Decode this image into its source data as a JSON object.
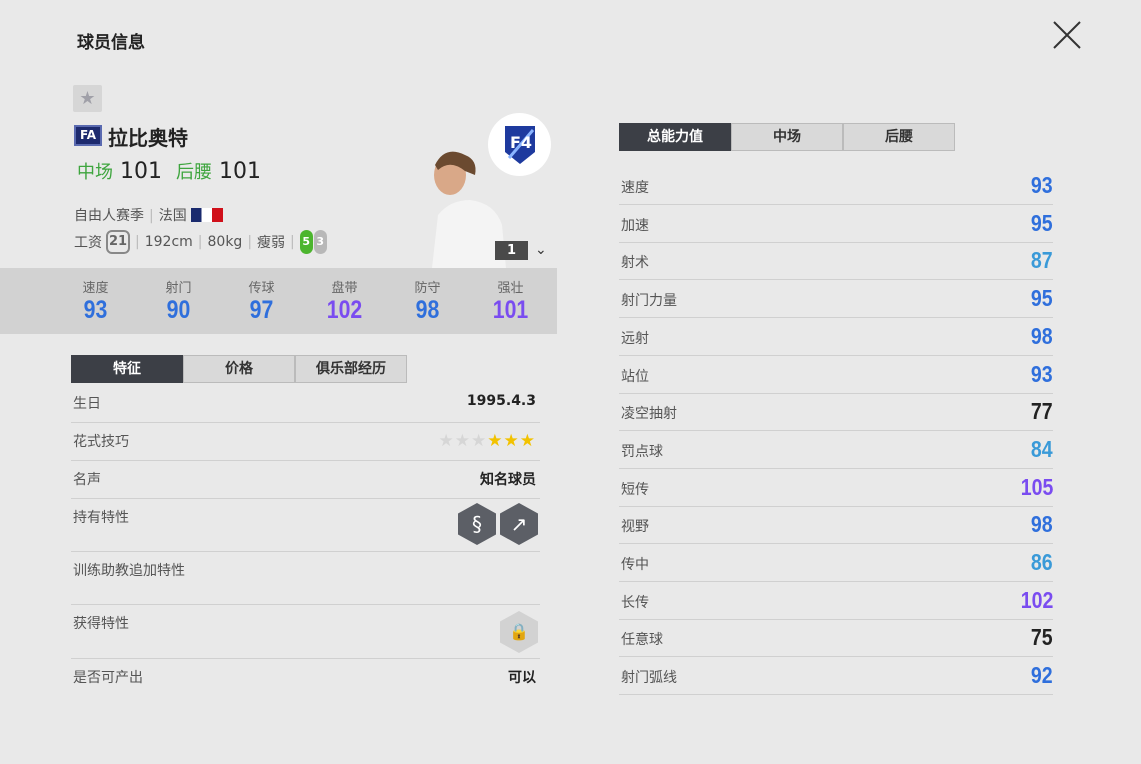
{
  "title": "球员信息",
  "player": {
    "badge": "FA",
    "name": "拉比奥特",
    "positions": [
      {
        "pos": "中场",
        "ovr": "101"
      },
      {
        "pos": "后腰",
        "ovr": "101"
      }
    ],
    "season": "自由人赛季",
    "nation": "法国",
    "wage_label": "工资",
    "wage": "21",
    "height": "192cm",
    "weight": "80kg",
    "body": "瘦弱",
    "strong_foot": "5",
    "weak_foot": "3",
    "level": "1"
  },
  "summary_stats": [
    {
      "label": "速度",
      "value": "93",
      "color": "#2f6fdc"
    },
    {
      "label": "射门",
      "value": "90",
      "color": "#2f6fdc"
    },
    {
      "label": "传球",
      "value": "97",
      "color": "#2f6fdc"
    },
    {
      "label": "盘带",
      "value": "102",
      "color": "#7a4cf0"
    },
    {
      "label": "防守",
      "value": "98",
      "color": "#2f6fdc"
    },
    {
      "label": "强壮",
      "value": "101",
      "color": "#7a4cf0"
    }
  ],
  "left_tabs": [
    "特征",
    "价格",
    "俱乐部经历"
  ],
  "details": {
    "birthday": {
      "label": "生日",
      "value": "1995.4.3"
    },
    "skill": {
      "label": "花式技巧",
      "stars": 3,
      "max": 6
    },
    "fame": {
      "label": "名声",
      "value": "知名球员"
    },
    "traits": {
      "label": "持有特性",
      "icons": [
        "snake-dribble-icon",
        "long-pass-icon"
      ]
    },
    "coach": {
      "label": "训练助教追加特性"
    },
    "acquired": {
      "label": "获得特性",
      "icon": "lock-icon"
    },
    "producible": {
      "label": "是否可产出",
      "value": "可以"
    }
  },
  "right_tabs": [
    "总能力值",
    "中场",
    "后腰"
  ],
  "attributes": [
    {
      "label": "速度",
      "value": "93",
      "color": "#2f6fdc"
    },
    {
      "label": "加速",
      "value": "95",
      "color": "#2f6fdc"
    },
    {
      "label": "射术",
      "value": "87",
      "color": "#3a9ad8"
    },
    {
      "label": "射门力量",
      "value": "95",
      "color": "#2f6fdc"
    },
    {
      "label": "远射",
      "value": "98",
      "color": "#2f6fdc"
    },
    {
      "label": "站位",
      "value": "93",
      "color": "#2f6fdc"
    },
    {
      "label": "凌空抽射",
      "value": "77",
      "color": "#222222"
    },
    {
      "label": "罚点球",
      "value": "84",
      "color": "#3a9ad8"
    },
    {
      "label": "短传",
      "value": "105",
      "color": "#7a4cf0"
    },
    {
      "label": "视野",
      "value": "98",
      "color": "#2f6fdc"
    },
    {
      "label": "传中",
      "value": "86",
      "color": "#3a9ad8"
    },
    {
      "label": "长传",
      "value": "102",
      "color": "#7a4cf0"
    },
    {
      "label": "任意球",
      "value": "75",
      "color": "#222222"
    },
    {
      "label": "射门弧线",
      "value": "92",
      "color": "#2f6fdc"
    }
  ]
}
